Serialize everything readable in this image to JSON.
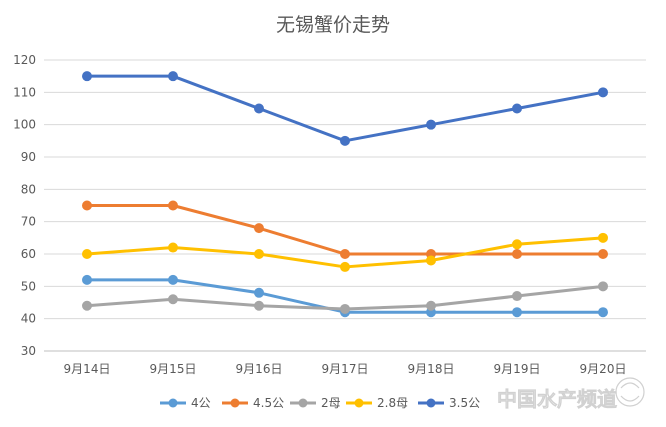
{
  "chart_data": {
    "type": "line",
    "title": "无锡蟹价走势",
    "categories": [
      "9月14日",
      "9月15日",
      "9月16日",
      "9月17日",
      "9月18日",
      "9月19日",
      "9月20日"
    ],
    "ylim": [
      30,
      120
    ],
    "yticks": [
      30,
      40,
      50,
      60,
      70,
      80,
      90,
      100,
      110,
      120
    ],
    "grid": true,
    "legend_position": "bottom",
    "series": [
      {
        "name": "4公",
        "color": "#5b9bd5",
        "values": [
          52,
          52,
          48,
          42,
          42,
          42,
          42
        ]
      },
      {
        "name": "4.5公",
        "color": "#ed7d31",
        "values": [
          75,
          75,
          68,
          60,
          60,
          60,
          60
        ]
      },
      {
        "name": "2母",
        "color": "#a5a5a5",
        "values": [
          44,
          46,
          44,
          43,
          44,
          47,
          50
        ]
      },
      {
        "name": "2.8母",
        "color": "#ffc000",
        "values": [
          60,
          62,
          60,
          56,
          58,
          63,
          65
        ]
      },
      {
        "name": "3.5公",
        "color": "#4472c4",
        "values": [
          115,
          115,
          105,
          95,
          100,
          105,
          110
        ]
      }
    ]
  },
  "watermark": {
    "text": "中国水产频道"
  }
}
